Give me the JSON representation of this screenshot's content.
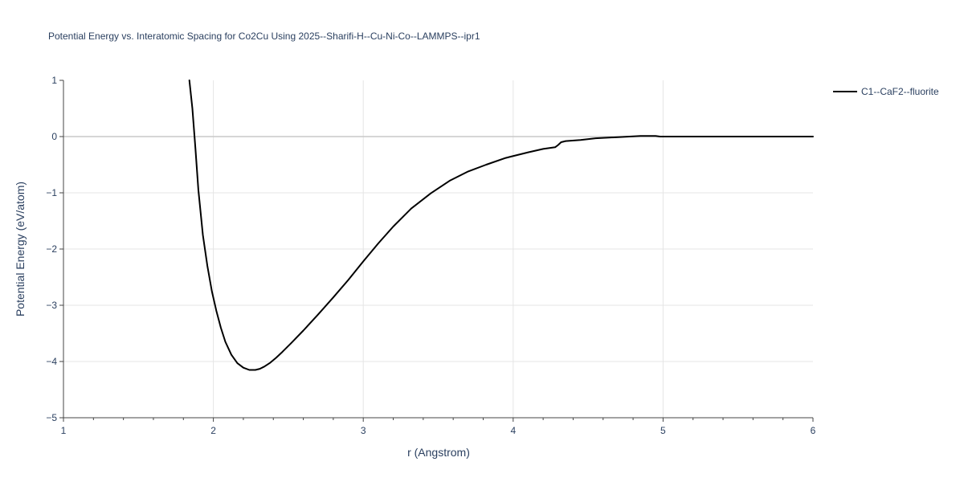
{
  "chart_data": {
    "type": "line",
    "title": "Potential Energy vs. Interatomic Spacing for Co2Cu Using 2025--Sharifi-H--Cu-Ni-Co--LAMMPS--ipr1",
    "xlabel": "r (Angstrom)",
    "ylabel": "Potential Energy (eV/atom)",
    "xlim": [
      1,
      6
    ],
    "ylim": [
      -5,
      1
    ],
    "x_ticks": [
      1,
      2,
      3,
      4,
      5,
      6
    ],
    "x_tick_labels": [
      "1",
      "2",
      "3",
      "4",
      "5",
      "6"
    ],
    "y_ticks": [
      1,
      0,
      -1,
      -2,
      -3,
      -4,
      -5
    ],
    "y_tick_labels": [
      "1",
      "0",
      "−1",
      "−2",
      "−3",
      "−4",
      "−5"
    ],
    "grid": true,
    "legend_position": "top-right",
    "series": [
      {
        "name": "C1--CaF2--fluorite",
        "color": "#000000",
        "x": [
          1.84,
          1.86,
          1.88,
          1.9,
          1.93,
          1.96,
          1.99,
          2.02,
          2.05,
          2.08,
          2.12,
          2.16,
          2.2,
          2.24,
          2.28,
          2.31,
          2.34,
          2.38,
          2.42,
          2.46,
          2.52,
          2.6,
          2.7,
          2.8,
          2.9,
          3.0,
          3.1,
          3.2,
          3.32,
          3.45,
          3.58,
          3.7,
          3.82,
          3.95,
          4.1,
          4.2,
          4.28,
          4.3,
          4.32,
          4.35,
          4.45,
          4.55,
          4.7,
          4.85,
          4.95,
          4.98,
          5.0,
          5.5,
          6.0
        ],
        "y": [
          1.0,
          0.5,
          -0.2,
          -0.95,
          -1.75,
          -2.3,
          -2.75,
          -3.1,
          -3.4,
          -3.65,
          -3.88,
          -4.03,
          -4.11,
          -4.15,
          -4.15,
          -4.13,
          -4.09,
          -4.02,
          -3.93,
          -3.83,
          -3.67,
          -3.45,
          -3.16,
          -2.86,
          -2.55,
          -2.22,
          -1.9,
          -1.6,
          -1.28,
          -1.01,
          -0.78,
          -0.62,
          -0.5,
          -0.38,
          -0.28,
          -0.22,
          -0.19,
          -0.15,
          -0.1,
          -0.08,
          -0.06,
          -0.03,
          -0.01,
          0.01,
          0.01,
          0.0,
          0.0,
          0.0,
          0.0
        ]
      }
    ]
  }
}
